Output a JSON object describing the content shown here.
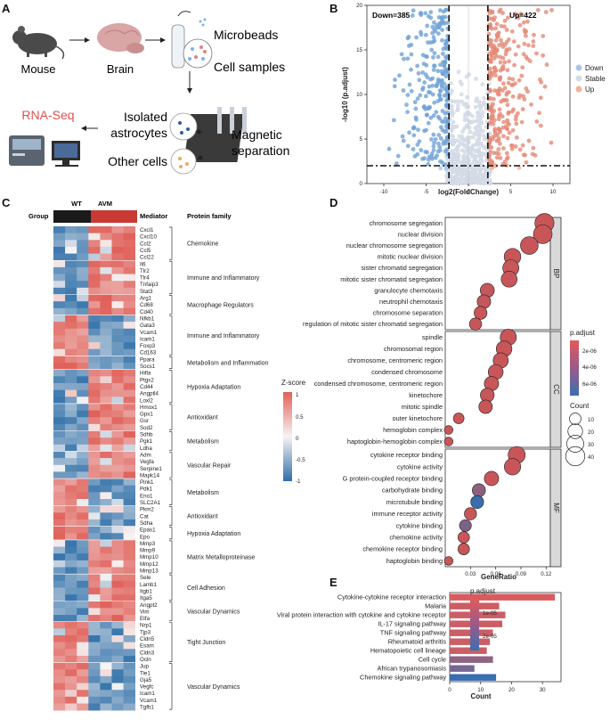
{
  "panels": {
    "A": {
      "letter": "A",
      "labels": {
        "mouse": "Mouse",
        "brain": "Brain",
        "microbeads": "Microbeads",
        "cell_samples": "Cell samples",
        "rna_seq": "RNA-Seq",
        "isolated_line1": "Isolated",
        "isolated_line2": "astrocytes",
        "other_cells": "Other cells",
        "magnetic_line1": "Magnetic",
        "magnetic_line2": "separation"
      },
      "colors": {
        "mouse": "#4a4a4a",
        "brain": "#d9a5a5",
        "rna_seq": "#e05050",
        "tube_blue": "#7fb2e5",
        "tube_red": "#e57f7f"
      }
    },
    "B": {
      "letter": "B",
      "down_label": "Down=385",
      "up_label": "Up=422",
      "legend": [
        "Down",
        "Stable",
        "Up"
      ],
      "legend_colors": [
        "#a9c6e8",
        "#d4dbe6",
        "#f2b39a"
      ],
      "chart_data": {
        "type": "scatter",
        "xlabel": "log2(FoldChange)",
        "ylabel": "-log10 (p.adjust)",
        "xlim": [
          -12,
          12
        ],
        "ylim": [
          0,
          20
        ],
        "xticks": [
          -10,
          -5,
          0,
          5,
          10
        ],
        "yticks": [
          0,
          5,
          10,
          15,
          20
        ],
        "x_threshold": [
          -2.3,
          2.3
        ],
        "y_threshold": 2,
        "counts": {
          "down": 385,
          "up": 422
        }
      }
    },
    "C": {
      "letter": "C",
      "group_label": "Group",
      "wt_label": "WT",
      "avm_label": "AVM",
      "mediator_header": "Mediator",
      "family_header": "Protein family",
      "zscore_title": "Z-score",
      "zscore_ticks": [
        "1",
        "0.5",
        "0",
        "-0.5",
        "-1"
      ],
      "genes": [
        "Cxcl1",
        "Cxcl10",
        "Ccl2",
        "Ccl5",
        "Ccl22",
        "Il6",
        "Tlr2",
        "Tlr4",
        "Tnfaip3",
        "Stat3",
        "Arg1",
        "Cd68",
        "Cd40",
        "Nfkb1",
        "Gata3",
        "Vcam1",
        "Icam1",
        "Foxp3",
        "Cd163",
        "Ppara",
        "Socs1",
        "Hifla",
        "Ptgs2",
        "Cd44",
        "Angptl4",
        "Loxl2",
        "Hmox1",
        "Gpx1",
        "Gsr",
        "Sod2",
        "Sdhb",
        "Pgk1",
        "Ldha",
        "Adm",
        "Vegfa",
        "Serpine1",
        "Mapk14",
        "Pink1",
        "Pdk1",
        "Eno1",
        "SLC2A1",
        "Pkm2",
        "Cat",
        "Sdha",
        "Epas1",
        "Epo",
        "Mmp3",
        "Mmp9",
        "Mmp10",
        "Mmp12",
        "Mmp13",
        "Sele",
        "Lamb1",
        "Itgb1",
        "Itga5",
        "Angpt2",
        "Vim",
        "Etfa",
        "Nrp1",
        "Tjp3",
        "Cldn5",
        "Esam",
        "Cldn3",
        "Ocln",
        "Jup",
        "Tie1",
        "Gja5",
        "Vegfc",
        "Icam1",
        "Vcam1",
        "Tgfb1"
      ],
      "families": [
        {
          "label": "Chemokine",
          "start": 0,
          "end": 4
        },
        {
          "label": "Immune and Inflammatory",
          "start": 5,
          "end": 9
        },
        {
          "label": "Macrophage Regulators",
          "start": 10,
          "end": 12
        },
        {
          "label": "Immune and Inflammatory",
          "start": 13,
          "end": 18
        },
        {
          "label": "Metabolism and Inflammation",
          "start": 19,
          "end": 20
        },
        {
          "label": "Hypoxia Adaptation",
          "start": 21,
          "end": 25
        },
        {
          "label": "Antioxidant",
          "start": 26,
          "end": 29
        },
        {
          "label": "Metabolism",
          "start": 30,
          "end": 32
        },
        {
          "label": "Vascular Repair",
          "start": 33,
          "end": 36
        },
        {
          "label": "Metabolism",
          "start": 37,
          "end": 40
        },
        {
          "label": "Antioxidant",
          "start": 41,
          "end": 43
        },
        {
          "label": "Hypoxia Adaptation",
          "start": 44,
          "end": 45
        },
        {
          "label": "Matrix Metalloproteinase",
          "start": 46,
          "end": 50
        },
        {
          "label": "Cell Adhesion",
          "start": 51,
          "end": 54
        },
        {
          "label": "Vascular Dynamics",
          "start": 55,
          "end": 57
        },
        {
          "label": "Tight Junction",
          "start": 58,
          "end": 63
        },
        {
          "label": "Vascular Dynamics",
          "start": 64,
          "end": 70
        }
      ],
      "up_rows": [
        0,
        1,
        2,
        3,
        4,
        5,
        6,
        7,
        8,
        9,
        10,
        11,
        12,
        21,
        22,
        23,
        24,
        25,
        26,
        27,
        28,
        29,
        30,
        31,
        32,
        33,
        34,
        35,
        36,
        46,
        47,
        48,
        49,
        50,
        51,
        52,
        53,
        54,
        55,
        56,
        57
      ],
      "colors": {
        "high": "#e0615a",
        "low": "#2e6fa8",
        "mid": "#f6f3f3"
      }
    },
    "D": {
      "letter": "D",
      "chart_data": {
        "type": "scatter",
        "xlabel": "GeneRatio",
        "xticks": [
          0.03,
          0.06,
          0.09,
          0.12
        ],
        "xlim": [
          0.0,
          0.125
        ],
        "size_legend_title": "Count",
        "size_legend": [
          10,
          20,
          30,
          40
        ],
        "color_legend_title": "p.adjust",
        "color_legend_ticks": [
          "2e-06",
          "4e-06",
          "6e-06"
        ],
        "groups": [
          {
            "name": "BP",
            "terms": [
              {
                "label": "chromosome segregation",
                "ratio": 0.118,
                "count": 40,
                "p": 0.1
              },
              {
                "label": "nuclear division",
                "ratio": 0.116,
                "count": 38,
                "p": 0.1
              },
              {
                "label": "nuclear chromosome segregation",
                "ratio": 0.1,
                "count": 33,
                "p": 0.1
              },
              {
                "label": "mitotic nuclear division",
                "ratio": 0.08,
                "count": 28,
                "p": 0.1
              },
              {
                "label": "sister chromatid segregation",
                "ratio": 0.078,
                "count": 26,
                "p": 0.1
              },
              {
                "label": "mitotic sister chromatid segregation",
                "ratio": 0.076,
                "count": 25,
                "p": 0.1
              },
              {
                "label": "granulocyte chemotaxis",
                "ratio": 0.05,
                "count": 18,
                "p": 0.12
              },
              {
                "label": "neutrophil chemotaxis",
                "ratio": 0.046,
                "count": 16,
                "p": 0.12
              },
              {
                "label": "chromosome separation",
                "ratio": 0.042,
                "count": 14,
                "p": 0.1
              },
              {
                "label": "regulation of mitotic sister chromatid segregation",
                "ratio": 0.036,
                "count": 12,
                "p": 0.1
              }
            ]
          },
          {
            "name": "CC",
            "terms": [
              {
                "label": "spindle",
                "ratio": 0.075,
                "count": 26,
                "p": 0.1
              },
              {
                "label": "chromosomal region",
                "ratio": 0.07,
                "count": 24,
                "p": 0.1
              },
              {
                "label": "chromosome, centromeric region",
                "ratio": 0.066,
                "count": 22,
                "p": 0.1
              },
              {
                "label": "condensed chromosome",
                "ratio": 0.06,
                "count": 21,
                "p": 0.1
              },
              {
                "label": "condensed chromosome, centromeric region",
                "ratio": 0.055,
                "count": 19,
                "p": 0.1
              },
              {
                "label": "kinetochore",
                "ratio": 0.05,
                "count": 17,
                "p": 0.1
              },
              {
                "label": "mitotic spindle",
                "ratio": 0.048,
                "count": 16,
                "p": 0.1
              },
              {
                "label": "outer kinetochore",
                "ratio": 0.016,
                "count": 8,
                "p": 0.1
              },
              {
                "label": "hemoglobin complex",
                "ratio": 0.004,
                "count": 4,
                "p": 0.1
              },
              {
                "label": "haptoglobin-hemoglobin complex",
                "ratio": 0.004,
                "count": 4,
                "p": 0.1
              }
            ]
          },
          {
            "name": "MF",
            "terms": [
              {
                "label": "cytokine receptor binding",
                "ratio": 0.085,
                "count": 30,
                "p": 0.1
              },
              {
                "label": "cytokine activity",
                "ratio": 0.08,
                "count": 27,
                "p": 0.1
              },
              {
                "label": "G protein-coupled receptor binding",
                "ratio": 0.055,
                "count": 19,
                "p": 0.1
              },
              {
                "label": "carbohydrate binding",
                "ratio": 0.04,
                "count": 15,
                "p": 0.45
              },
              {
                "label": "microtubule binding",
                "ratio": 0.038,
                "count": 14,
                "p": 0.95
              },
              {
                "label": "immune receptor activity",
                "ratio": 0.03,
                "count": 12,
                "p": 0.1
              },
              {
                "label": "cytokine binding",
                "ratio": 0.024,
                "count": 11,
                "p": 0.55
              },
              {
                "label": "chemokine activity",
                "ratio": 0.022,
                "count": 10,
                "p": 0.1
              },
              {
                "label": "chemokine receptor binding",
                "ratio": 0.022,
                "count": 10,
                "p": 0.1
              },
              {
                "label": "haptoglobin binding",
                "ratio": 0.004,
                "count": 4,
                "p": 0.1
              }
            ]
          }
        ]
      }
    },
    "E": {
      "letter": "E",
      "chart_data": {
        "type": "bar",
        "orientation": "horizontal",
        "xlabel": "Count",
        "xticks": [
          0,
          10,
          20,
          30
        ],
        "xlim": [
          0,
          36
        ],
        "legend_title": "p.adjust",
        "legend_ticks": [
          "1e-05",
          "2e-05"
        ],
        "categories": [
          "Cytokine-cytokine receptor interaction",
          "Malaria",
          "Viral protein interaction with cytokine and cytokine receptor",
          "IL-17 signaling pathway",
          "TNF signaling pathway",
          "Rheumatoid arthritis",
          "Hematopoietic cell lineage",
          "Cell cycle",
          "African trypanosomiasis",
          "Chemokine signaling pathway"
        ],
        "values": [
          34,
          16,
          18,
          17,
          14,
          13,
          12,
          14,
          8,
          15
        ],
        "p_values": [
          0.05,
          0.1,
          0.12,
          0.12,
          0.12,
          0.12,
          0.12,
          0.45,
          0.6,
          0.95
        ]
      }
    }
  }
}
